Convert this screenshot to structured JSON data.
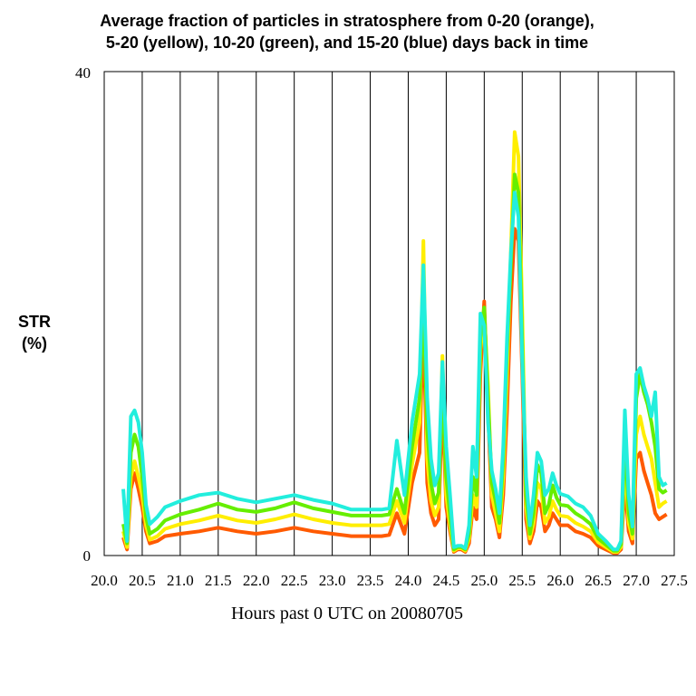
{
  "chart_data": {
    "type": "line",
    "title_lines": [
      "Average fraction of particles in stratosphere from 0-20 (orange),",
      "5-20 (yellow), 10-20 (green), and 15-20 (blue) days back in time"
    ],
    "ylabel_lines": [
      "STR",
      "(%)"
    ],
    "xlabel": "Hours past 0 UTC on 20080705",
    "xlim": [
      20.0,
      27.5
    ],
    "ylim": [
      0,
      40
    ],
    "x_ticks": [
      20.0,
      20.5,
      21.0,
      21.5,
      22.0,
      22.5,
      23.0,
      23.5,
      24.0,
      24.5,
      25.0,
      25.5,
      26.0,
      26.5,
      27.0,
      27.5
    ],
    "x_tick_labels": [
      "20.0",
      "20.5",
      "21.0",
      "21.5",
      "22.0",
      "22.5",
      "23.0",
      "23.5",
      "24.0",
      "24.5",
      "25.0",
      "25.5",
      "26.0",
      "26.5",
      "27.0",
      "27.5"
    ],
    "y_tick_labels": [
      "0",
      "40"
    ],
    "grid_x": true,
    "grid_y": false,
    "x": [
      20.25,
      20.3,
      20.35,
      20.4,
      20.45,
      20.5,
      20.55,
      20.6,
      20.7,
      20.8,
      21.0,
      21.25,
      21.5,
      21.75,
      22.0,
      22.25,
      22.5,
      22.75,
      23.0,
      23.25,
      23.5,
      23.65,
      23.75,
      23.85,
      23.95,
      24.05,
      24.15,
      24.2,
      24.25,
      24.3,
      24.35,
      24.4,
      24.45,
      24.5,
      24.55,
      24.6,
      24.65,
      24.7,
      24.75,
      24.8,
      24.85,
      24.9,
      24.95,
      25.0,
      25.05,
      25.1,
      25.15,
      25.2,
      25.25,
      25.3,
      25.35,
      25.4,
      25.45,
      25.5,
      25.55,
      25.6,
      25.65,
      25.7,
      25.75,
      25.8,
      25.85,
      25.9,
      25.95,
      26.0,
      26.1,
      26.2,
      26.3,
      26.4,
      26.5,
      26.6,
      26.7,
      26.75,
      26.8,
      26.85,
      26.9,
      26.95,
      27.0,
      27.05,
      27.1,
      27.15,
      27.2,
      27.25,
      27.3,
      27.35,
      27.4
    ],
    "series": [
      {
        "name": "0-20",
        "color": "#ff5a00",
        "values": [
          1.5,
          0.5,
          5.5,
          6.8,
          5.5,
          4.0,
          2.0,
          1.0,
          1.2,
          1.6,
          1.8,
          2.0,
          2.3,
          2.0,
          1.8,
          2.0,
          2.3,
          2.0,
          1.8,
          1.6,
          1.6,
          1.6,
          1.7,
          3.5,
          1.8,
          6.0,
          8.5,
          20.0,
          6.0,
          3.5,
          2.5,
          3.0,
          13.0,
          4.0,
          2.0,
          0.3,
          0.5,
          0.5,
          0.3,
          1.0,
          4.0,
          3.0,
          15.0,
          21.0,
          12.0,
          4.0,
          3.0,
          1.5,
          5.0,
          12.0,
          21.0,
          27.0,
          26.0,
          15.0,
          3.0,
          1.0,
          2.0,
          4.5,
          4.0,
          2.0,
          2.5,
          3.5,
          3.0,
          2.5,
          2.5,
          2.0,
          1.8,
          1.5,
          0.8,
          0.5,
          0.2,
          0.2,
          0.5,
          6.0,
          2.0,
          1.0,
          8.0,
          8.5,
          7.0,
          6.0,
          5.0,
          3.5,
          3.0,
          3.2,
          3.4
        ]
      },
      {
        "name": "5-20",
        "color": "#ffee00",
        "values": [
          2.0,
          0.7,
          6.5,
          7.8,
          6.5,
          5.0,
          2.5,
          1.3,
          1.6,
          2.2,
          2.6,
          2.9,
          3.3,
          2.9,
          2.7,
          3.0,
          3.4,
          3.0,
          2.7,
          2.5,
          2.5,
          2.5,
          2.6,
          4.5,
          2.7,
          7.5,
          11.0,
          26.0,
          8.0,
          4.5,
          3.3,
          4.0,
          16.5,
          5.0,
          2.5,
          0.4,
          0.6,
          0.6,
          0.4,
          1.4,
          5.0,
          4.0,
          17.0,
          20.0,
          14.0,
          5.0,
          3.5,
          2.0,
          6.5,
          15.0,
          25.0,
          35.0,
          33.0,
          20.0,
          4.0,
          1.4,
          2.7,
          6.0,
          5.5,
          2.7,
          3.2,
          4.5,
          3.8,
          3.3,
          3.2,
          2.7,
          2.4,
          2.0,
          1.1,
          0.7,
          0.3,
          0.3,
          0.7,
          8.0,
          2.7,
          1.4,
          10.0,
          11.5,
          10.0,
          9.0,
          8.0,
          6.0,
          4.0,
          4.3,
          4.5
        ]
      },
      {
        "name": "10-20",
        "color": "#66ee00",
        "values": [
          2.6,
          1.0,
          8.5,
          10.0,
          9.0,
          6.5,
          3.2,
          1.8,
          2.2,
          2.9,
          3.4,
          3.8,
          4.3,
          3.8,
          3.6,
          3.9,
          4.4,
          3.9,
          3.6,
          3.3,
          3.3,
          3.3,
          3.4,
          5.5,
          3.5,
          9.0,
          13.0,
          21.0,
          10.5,
          6.0,
          4.3,
          5.2,
          14.0,
          6.5,
          3.3,
          0.5,
          0.7,
          0.7,
          0.5,
          1.8,
          6.5,
          5.0,
          18.0,
          20.5,
          13.0,
          6.0,
          4.5,
          2.7,
          8.0,
          17.0,
          24.0,
          31.5,
          30.0,
          17.5,
          5.0,
          1.8,
          3.5,
          7.5,
          6.8,
          3.5,
          4.2,
          5.8,
          4.8,
          4.2,
          4.1,
          3.5,
          3.1,
          2.6,
          1.4,
          0.9,
          0.4,
          0.4,
          0.9,
          10.0,
          3.5,
          1.8,
          13.0,
          15.0,
          13.5,
          12.5,
          11.0,
          9.0,
          5.5,
          5.2,
          5.4
        ]
      },
      {
        "name": "15-20",
        "color": "#22eedd",
        "values": [
          5.5,
          1.2,
          11.5,
          12.0,
          11.0,
          8.5,
          4.2,
          2.6,
          3.2,
          4.0,
          4.5,
          5.0,
          5.2,
          4.7,
          4.4,
          4.7,
          5.0,
          4.6,
          4.3,
          3.8,
          3.8,
          3.8,
          3.9,
          9.5,
          5.0,
          11.0,
          15.0,
          24.0,
          13.0,
          8.0,
          5.8,
          6.8,
          16.0,
          9.0,
          5.0,
          0.7,
          0.8,
          0.8,
          0.6,
          2.5,
          9.0,
          6.5,
          20.0,
          19.0,
          11.0,
          7.0,
          5.5,
          3.5,
          9.0,
          18.0,
          25.0,
          30.0,
          28.0,
          16.0,
          6.5,
          2.5,
          5.0,
          8.5,
          7.8,
          5.0,
          5.5,
          6.8,
          5.8,
          5.1,
          4.9,
          4.3,
          4.0,
          3.3,
          1.8,
          1.2,
          0.5,
          0.5,
          1.2,
          12.0,
          5.0,
          2.4,
          15.0,
          15.5,
          14.0,
          13.0,
          11.5,
          13.5,
          6.5,
          5.8,
          6.0
        ]
      }
    ]
  }
}
